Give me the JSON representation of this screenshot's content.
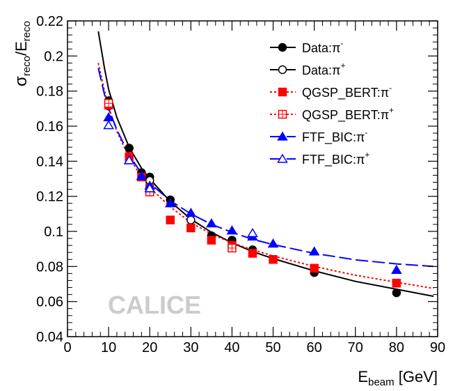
{
  "chart_data": {
    "type": "scatter",
    "title": "",
    "watermark": "CALICE",
    "xlabel": {
      "main": "E",
      "sub": "beam",
      "rest": " [GeV]"
    },
    "ylabel": {
      "sigma": "σ",
      "sigma_sub": "reco",
      "slash": "/E",
      "e_sub": "reco"
    },
    "xlim": [
      0,
      90
    ],
    "ylim": [
      0.04,
      0.22
    ],
    "xticks": [
      0,
      10,
      20,
      30,
      40,
      50,
      60,
      70,
      80,
      90
    ],
    "yticks": [
      0.04,
      0.06,
      0.08,
      0.1,
      0.12,
      0.14,
      0.16,
      0.18,
      0.2,
      0.22
    ],
    "ytick_labels": [
      "0.04",
      "0.06",
      "0.08",
      "0.1",
      "0.12",
      "0.14",
      "0.16",
      "0.18",
      "0.2",
      "0.22"
    ],
    "legend_position": "top-right",
    "series": [
      {
        "name": "Data:π⁻",
        "label": "Data:π",
        "sup": "-",
        "color": "#000000",
        "marker": "circle",
        "filled": true,
        "line": "solid",
        "x": [
          10,
          15,
          18,
          20,
          25,
          35,
          40,
          45,
          60,
          80
        ],
        "y": [
          0.1745,
          0.1475,
          0.1335,
          0.131,
          0.118,
          0.0975,
          0.095,
          0.0895,
          0.0765,
          0.065
        ]
      },
      {
        "name": "Data:π⁺",
        "label": "Data:π",
        "sup": "+",
        "color": "#000000",
        "marker": "circle",
        "filled": false,
        "line": "solid",
        "x": [
          10,
          20,
          30,
          40
        ],
        "y": [
          0.1715,
          0.129,
          0.1065,
          0.092
        ]
      },
      {
        "name": "QGSP_BERT:π⁻",
        "label": "QGSP_BERT:π",
        "sup": "-",
        "color": "#ff0000",
        "marker": "square",
        "filled": true,
        "line": "dotted",
        "x": [
          10,
          15,
          18,
          20,
          25,
          30,
          35,
          40,
          45,
          50,
          60,
          80
        ],
        "y": [
          0.172,
          0.1425,
          0.131,
          0.1245,
          0.1065,
          0.102,
          0.095,
          0.092,
          0.0875,
          0.084,
          0.079,
          0.0705
        ]
      },
      {
        "name": "QGSP_BERT:π⁺",
        "label": "QGSP_BERT:π",
        "sup": "+",
        "color": "#ff0000",
        "marker": "square",
        "filled": false,
        "line": "dotted",
        "x": [
          10,
          20,
          40
        ],
        "y": [
          0.173,
          0.1225,
          0.0905
        ]
      },
      {
        "name": "FTF_BIC:π⁻",
        "label": "FTF_BIC:π",
        "sup": "-",
        "color": "#0000ff",
        "marker": "triangle",
        "filled": true,
        "line": "dashed",
        "x": [
          10,
          15,
          18,
          20,
          25,
          30,
          35,
          40,
          45,
          50,
          60,
          80
        ],
        "y": [
          0.165,
          0.1405,
          0.1315,
          0.126,
          0.116,
          0.1105,
          0.1045,
          0.1005,
          0.097,
          0.093,
          0.0885,
          0.078
        ]
      },
      {
        "name": "FTF_BIC:π⁺",
        "label": "FTF_BIC:π",
        "sup": "+",
        "color": "#0000ff",
        "marker": "triangle",
        "filled": false,
        "line": "dashed",
        "x": [
          10,
          15,
          20,
          45
        ],
        "y": [
          0.1605,
          0.1405,
          0.1245,
          0.099
        ]
      }
    ],
    "fits": [
      {
        "name": "Data fit",
        "color": "#000000",
        "line": "solid",
        "x": [
          7.5,
          9,
          10,
          12,
          15,
          18,
          20,
          25,
          30,
          35,
          40,
          45,
          50,
          60,
          70,
          80,
          89
        ],
        "y": [
          0.214,
          0.193,
          0.181,
          0.165,
          0.148,
          0.136,
          0.13,
          0.117,
          0.107,
          0.0995,
          0.0935,
          0.0885,
          0.0845,
          0.0775,
          0.0715,
          0.067,
          0.063
        ]
      },
      {
        "name": "QGSP_BERT fit",
        "color": "#ff0000",
        "line": "dotted",
        "x": [
          7.5,
          9,
          10,
          12,
          15,
          18,
          20,
          25,
          30,
          35,
          40,
          45,
          50,
          60,
          70,
          80,
          89
        ],
        "y": [
          0.196,
          0.18,
          0.171,
          0.157,
          0.142,
          0.131,
          0.125,
          0.114,
          0.105,
          0.0985,
          0.0935,
          0.0895,
          0.086,
          0.08,
          0.075,
          0.071,
          0.0675
        ]
      },
      {
        "name": "FTF_BIC fit",
        "color": "#0000ff",
        "line": "dashed",
        "x": [
          7.5,
          9,
          10,
          12,
          15,
          18,
          20,
          25,
          30,
          35,
          40,
          45,
          50,
          60,
          70,
          80,
          89
        ],
        "y": [
          0.193,
          0.178,
          0.17,
          0.158,
          0.1435,
          0.133,
          0.1275,
          0.1175,
          0.11,
          0.104,
          0.0995,
          0.0955,
          0.0925,
          0.0875,
          0.0838,
          0.0815,
          0.08
        ]
      }
    ]
  }
}
